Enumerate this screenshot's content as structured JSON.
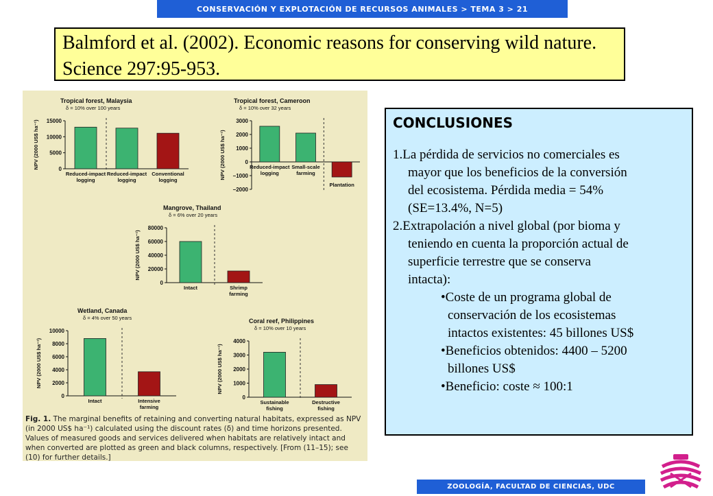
{
  "header": {
    "title": "CONSERVACIÓN Y EXPLOTACIÓN DE RECURSOS ANIMALES > TEMA 3 > 21"
  },
  "reference": {
    "text": "Balmford et al. (2002). Economic reasons for conserving wild nature. Science 297:95-953."
  },
  "figure": {
    "caption_label": "Fig. 1.",
    "caption_text": "The marginal benefits of retaining and converting natural habitats, expressed as NPV (in 2000 US$ ha⁻¹) calculated using the discount rates (δ) and time horizons presented. Values of measured goods and services delivered when habitats are relatively intact and when converted are plotted as green and black columns, respectively. [From (11–15); see (10) for further details.]"
  },
  "chart_data": [
    {
      "type": "bar",
      "title": "Tropical forest, Malaysia",
      "subtitle": "δ = 10% over 100 years",
      "ylabel": "NPV (2000 US$ ha⁻¹)",
      "ylim": [
        0,
        15000
      ],
      "yticks": [
        "15000",
        "10000",
        "5000",
        "0"
      ],
      "categories": [
        "Reduced-impact logging",
        "Reduced-impact logging",
        "Conventional logging"
      ],
      "values": [
        13000,
        12700,
        11100
      ],
      "colors": [
        "#3cb371",
        "#3cb371",
        "#a31515"
      ]
    },
    {
      "type": "bar",
      "title": "Tropical forest, Cameroon",
      "subtitle": "δ = 10% over 32 years",
      "ylabel": "NPV (2000 US$ ha⁻¹)",
      "ylim": [
        -2000,
        3000
      ],
      "yticks": [
        "3000",
        "2000",
        "1000",
        "0",
        "−1000",
        "−2000"
      ],
      "categories": [
        "Reduced-impact logging",
        "Small-scale farming",
        "Plantation"
      ],
      "values": [
        2600,
        2100,
        -1100
      ],
      "colors": [
        "#3cb371",
        "#3cb371",
        "#a31515"
      ]
    },
    {
      "type": "bar",
      "title": "Mangrove, Thailand",
      "subtitle": "δ = 6% over 20 years",
      "ylabel": "NPV (2000 US$ ha⁻¹)",
      "ylim": [
        0,
        80000
      ],
      "yticks": [
        "80000",
        "60000",
        "40000",
        "20000",
        "0"
      ],
      "categories": [
        "Intact",
        "Shrimp farming"
      ],
      "values": [
        60000,
        17000
      ],
      "colors": [
        "#3cb371",
        "#a31515"
      ]
    },
    {
      "type": "bar",
      "title": "Wetland, Canada",
      "subtitle": "δ = 4% over 50 years",
      "ylabel": "NPV (2000 US$ ha⁻¹)",
      "ylim": [
        0,
        10000
      ],
      "yticks": [
        "10000",
        "8000",
        "6000",
        "4000",
        "2000",
        "0"
      ],
      "categories": [
        "Intact",
        "Intensive farming"
      ],
      "values": [
        8800,
        3700
      ],
      "colors": [
        "#3cb371",
        "#a31515"
      ]
    },
    {
      "type": "bar",
      "title": "Coral reef, Philippines",
      "subtitle": "δ = 10% over 10 years",
      "ylabel": "NPV (2000 US$ ha⁻¹)",
      "ylim": [
        0,
        4000
      ],
      "yticks": [
        "4000",
        "3000",
        "2000",
        "1000",
        "0"
      ],
      "categories": [
        "Sustainable fishing",
        "Destructive fishing"
      ],
      "values": [
        3200,
        900
      ],
      "colors": [
        "#3cb371",
        "#a31515"
      ]
    }
  ],
  "conclusions": {
    "title": "CONCLUSIONES",
    "item1": [
      "1.La pérdida de servicios no comerciales es",
      "mayor que los beneficios de la conversión",
      "del ecosistema. Pérdida media = 54%",
      "(SE=13.4%, N=5)"
    ],
    "item2": [
      "2.Extrapolación a nivel global (por bioma y",
      "teniendo en cuenta la proporción actual de",
      "superficie terrestre que se conserva",
      "intacta):"
    ],
    "b1": [
      "•Coste de un programa global de",
      "conservación de los ecosistemas",
      "intactos existentes: 45 billones US$"
    ],
    "b2": [
      "•Beneficios obtenidos: 4400 – 5200",
      "billones US$"
    ],
    "b3": [
      "•Beneficio: coste ≈ 100:1"
    ]
  },
  "footer": {
    "text": "ZOOLOGÍA, FACULTAD DE CIENCIAS, UDC"
  }
}
